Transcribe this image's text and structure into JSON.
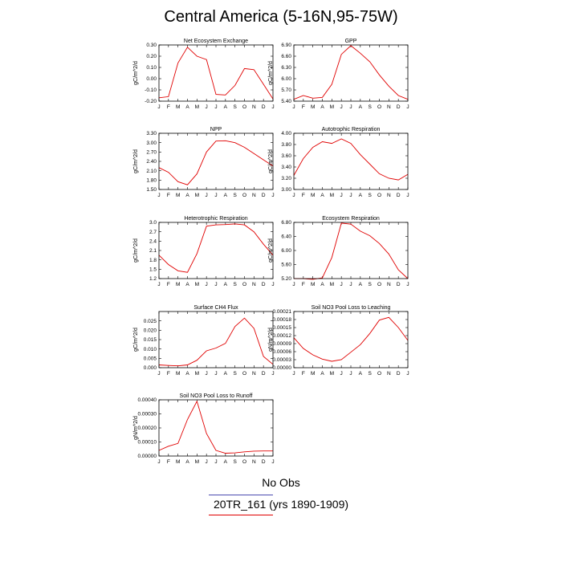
{
  "title": "Central America (5-16N,95-75W)",
  "legend": {
    "obs_label": "No Obs",
    "obs_color": "#4a4ab0",
    "model_label": "20TR_161 (yrs 1890-1909)",
    "model_color": "#e00000"
  },
  "months": [
    "J",
    "F",
    "M",
    "A",
    "M",
    "J",
    "J",
    "A",
    "S",
    "O",
    "N",
    "D",
    "J"
  ],
  "chart_data": [
    {
      "type": "line",
      "title": "Net Ecosystem Exchange",
      "ylabel": "gC/m^2/d",
      "ylim": [
        -0.2,
        0.3
      ],
      "yticks": [
        "-0.20",
        "-0.10",
        "0.00",
        "0.10",
        "0.20",
        "0.30"
      ],
      "values": [
        -0.17,
        -0.16,
        0.14,
        0.28,
        0.2,
        0.17,
        -0.14,
        -0.145,
        -0.06,
        0.09,
        0.08,
        -0.05,
        -0.18
      ]
    },
    {
      "type": "line",
      "title": "GPP",
      "ylabel": "gC/m^2/d",
      "ylim": [
        5.4,
        6.9
      ],
      "yticks": [
        "5.40",
        "5.70",
        "6.00",
        "6.30",
        "6.60",
        "6.90"
      ],
      "values": [
        5.45,
        5.55,
        5.48,
        5.5,
        5.85,
        6.65,
        6.88,
        6.68,
        6.45,
        6.1,
        5.8,
        5.55,
        5.45
      ]
    },
    {
      "type": "line",
      "title": "NPP",
      "ylabel": "gC/m^2/d",
      "ylim": [
        1.5,
        3.3
      ],
      "yticks": [
        "1.50",
        "1.80",
        "2.10",
        "2.40",
        "2.70",
        "3.00",
        "3.30"
      ],
      "values": [
        2.2,
        2.05,
        1.75,
        1.65,
        2.0,
        2.7,
        3.05,
        3.06,
        3.0,
        2.85,
        2.65,
        2.45,
        2.25
      ]
    },
    {
      "type": "line",
      "title": "Autotrophic Respiration",
      "ylabel": "gC/m^2/d",
      "ylim": [
        3.0,
        4.0
      ],
      "yticks": [
        "3.00",
        "3.20",
        "3.40",
        "3.60",
        "3.80",
        "4.00"
      ],
      "values": [
        3.25,
        3.55,
        3.75,
        3.85,
        3.82,
        3.9,
        3.82,
        3.62,
        3.45,
        3.28,
        3.2,
        3.17,
        3.27
      ]
    },
    {
      "type": "line",
      "title": "Heterotrophic Respiration",
      "ylabel": "gC/m^2/d",
      "ylim": [
        1.2,
        3.0
      ],
      "yticks": [
        "1.2",
        "1.5",
        "1.8",
        "2.1",
        "2.4",
        "2.7",
        "3.0"
      ],
      "values": [
        1.95,
        1.65,
        1.45,
        1.4,
        2.0,
        2.88,
        2.92,
        2.93,
        2.95,
        2.92,
        2.7,
        2.3,
        1.95
      ]
    },
    {
      "type": "line",
      "title": "Ecosystem Respiration",
      "ylabel": "gC/m^2/d",
      "ylim": [
        5.2,
        6.8
      ],
      "yticks": [
        "5.20",
        "5.60",
        "6.00",
        "6.40",
        "6.80"
      ],
      "values": [
        5.2,
        5.2,
        5.18,
        5.22,
        5.8,
        6.78,
        6.75,
        6.55,
        6.42,
        6.2,
        5.9,
        5.45,
        5.2
      ]
    },
    {
      "type": "line",
      "title": "Surface CH4 Flux",
      "ylabel": "gC/m^2/d",
      "ylim": [
        0.0,
        0.03
      ],
      "yticks": [
        "0.000",
        "0.005",
        "0.010",
        "0.015",
        "0.020",
        "0.025"
      ],
      "values": [
        0.0015,
        0.0012,
        0.001,
        0.0015,
        0.004,
        0.009,
        0.0105,
        0.013,
        0.022,
        0.0265,
        0.021,
        0.006,
        0.0018
      ]
    },
    {
      "type": "line",
      "title": "Soil NO3 Pool Loss to Leaching",
      "ylabel": "gN/m^2/d",
      "ylim": [
        0.0,
        0.00021
      ],
      "yticks": [
        "0.00000",
        "0.00003",
        "0.00006",
        "0.00009",
        "0.00012",
        "0.00015",
        "0.00018",
        "0.00021"
      ],
      "values": [
        0.000112,
        7.2e-05,
        4.8e-05,
        3.2e-05,
        2.4e-05,
        3e-05,
        5.8e-05,
        8.6e-05,
        0.000128,
        0.000178,
        0.000188,
        0.00015,
        0.000102
      ]
    },
    {
      "type": "line",
      "title": "Soil NO3 Pool Loss to Runoff",
      "ylabel": "gN/m^2/d",
      "ylim": [
        0.0,
        0.0004
      ],
      "yticks": [
        "0.00000",
        "0.00010",
        "0.00020",
        "0.00030",
        "0.00040"
      ],
      "values": [
        4e-05,
        7e-05,
        9e-05,
        0.00026,
        0.00039,
        0.00016,
        4e-05,
        2e-05,
        2.2e-05,
        3e-05,
        3.5e-05,
        3.6e-05,
        3.6e-05
      ]
    }
  ]
}
